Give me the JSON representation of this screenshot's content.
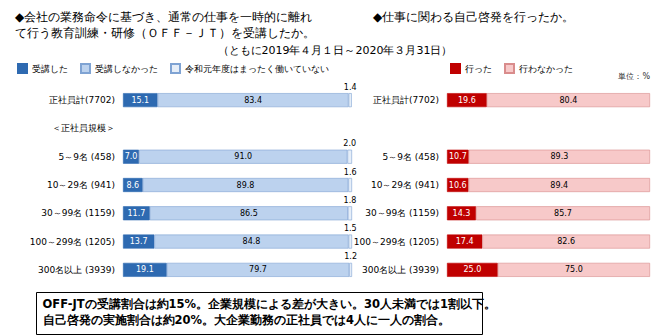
{
  "subtitle": "（ともに2019年４月１日～2020年３月31日）",
  "annotations": [
    "OFF-JTの受講割合は約15%。企業規模による差が大きい。30人未満では1割以下。",
    "自己啓発の実施割合は約20%。大企業勤務の正社員では4人に一人の割合。"
  ],
  "chart_data": [
    {
      "type": "bar",
      "orientation": "horizontal",
      "stacked": true,
      "data_labels": true,
      "grid": false,
      "tick_labels": "y",
      "legend": "top",
      "title": "◆会社の業務命令に基づき、通常の仕事を一時的に離れて行う教育訓練・研修（ＯＦＦ－ＪＴ）を受講したか。",
      "categories": [
        "正社員計(7702)",
        "＜正社員規模＞",
        "5～9名 (458)",
        "10～29名 (941)",
        "30～99名 (1159)",
        "100～299名 (1205)",
        "300名以上 (3939)"
      ],
      "xlim": [
        0,
        100
      ],
      "series": [
        {
          "name": "受講した",
          "color": "#2e6ab1",
          "values": [
            15.1,
            null,
            7.0,
            8.6,
            11.7,
            13.7,
            19.1
          ],
          "value_labels": [
            "15.1",
            null,
            "7.0",
            "8.6",
            "11.7",
            "13.7",
            "19.1"
          ]
        },
        {
          "name": "受講しなかった",
          "color": "#bcd2ee",
          "values": [
            83.4,
            null,
            91.0,
            89.8,
            86.5,
            84.8,
            79.7
          ],
          "value_labels": [
            "83.4",
            null,
            "91.0",
            "89.8",
            "86.5",
            "84.8",
            "79.7"
          ]
        },
        {
          "name": "令和元年度はまったく働いていない",
          "color": "#e6eef8",
          "values": [
            1.4,
            null,
            2.0,
            1.6,
            1.8,
            1.5,
            1.2
          ],
          "value_labels": [
            "1.4",
            null,
            "2.0",
            "1.6",
            "1.8",
            "1.5",
            "1.2"
          ]
        }
      ]
    },
    {
      "type": "bar",
      "orientation": "horizontal",
      "stacked": true,
      "data_labels": true,
      "grid": false,
      "tick_labels": "y",
      "legend": "top",
      "title": "◆仕事に関わる自己啓発を行ったか。",
      "annotations": [
        "単位：%"
      ],
      "categories": [
        "正社員計(7702)",
        null,
        "5～9名 (458)",
        "10～29名 (941)",
        "30～99名 (1159)",
        "100～299名 (1205)",
        "300名以上 (3939)"
      ],
      "xlim": [
        0,
        100
      ],
      "series": [
        {
          "name": "行った",
          "color": "#c00000",
          "values": [
            19.6,
            null,
            10.7,
            10.6,
            14.3,
            17.4,
            25.0
          ],
          "value_labels": [
            "19.6",
            null,
            "10.7",
            "10.6",
            "14.3",
            "17.4",
            "25.0"
          ]
        },
        {
          "name": "行わなかった",
          "color": "#f7c9c9",
          "values": [
            80.4,
            null,
            89.3,
            89.4,
            85.7,
            82.6,
            75.0
          ],
          "value_labels": [
            "80.4",
            null,
            "89.3",
            "89.4",
            "85.7",
            "82.6",
            "75.0"
          ]
        }
      ]
    }
  ]
}
